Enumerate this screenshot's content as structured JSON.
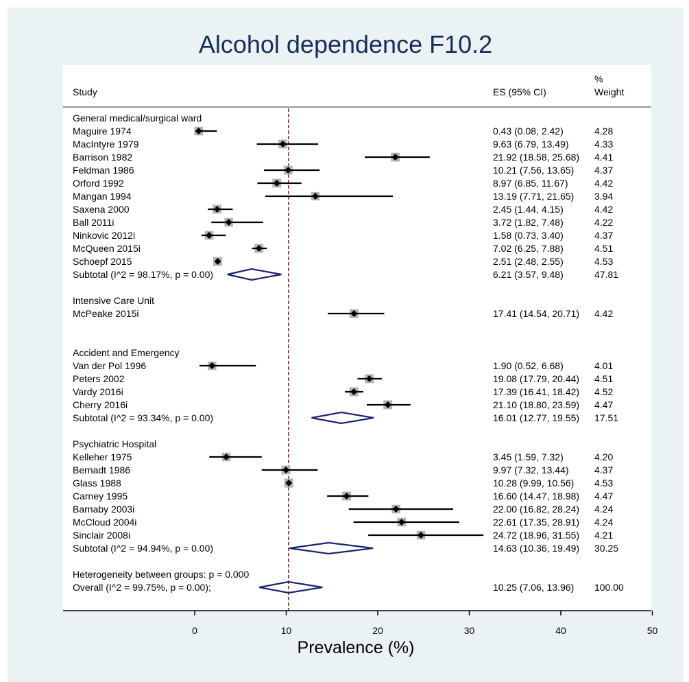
{
  "chart_data": {
    "type": "forest",
    "title": "Alcohol dependence F10.2",
    "xlabel": "Prevalence (%)",
    "xlim": [
      -15,
      50
    ],
    "xticks": [
      0,
      10,
      20,
      30,
      40,
      50
    ],
    "reference_line": 10.25,
    "header": {
      "study": "Study",
      "es": "ES (95% CI)",
      "weight_top": "%",
      "weight_bottom": "Weight"
    },
    "rows": [
      {
        "kind": "group",
        "label": "General medical/surgical ward"
      },
      {
        "kind": "study",
        "label": "Maguire 1974",
        "es": 0.43,
        "lo": 0.08,
        "hi": 2.42,
        "weight": 4.28,
        "es_text": "0.43 (0.08, 2.42)",
        "w_text": "4.28"
      },
      {
        "kind": "study",
        "label": "MacIntyre 1979",
        "es": 9.63,
        "lo": 6.79,
        "hi": 13.49,
        "weight": 4.33,
        "es_text": "9.63 (6.79, 13.49)",
        "w_text": "4.33"
      },
      {
        "kind": "study",
        "label": "Barrison 1982",
        "es": 21.92,
        "lo": 18.58,
        "hi": 25.68,
        "weight": 4.41,
        "es_text": "21.92 (18.58, 25.68)",
        "w_text": "4.41"
      },
      {
        "kind": "study",
        "label": "Feldman 1986",
        "es": 10.21,
        "lo": 7.56,
        "hi": 13.65,
        "weight": 4.37,
        "es_text": "10.21 (7.56, 13.65)",
        "w_text": "4.37"
      },
      {
        "kind": "study",
        "label": "Orford 1992",
        "es": 8.97,
        "lo": 6.85,
        "hi": 11.67,
        "weight": 4.42,
        "es_text": "8.97 (6.85, 11.67)",
        "w_text": "4.42"
      },
      {
        "kind": "study",
        "label": "Mangan 1994",
        "es": 13.19,
        "lo": 7.71,
        "hi": 21.65,
        "weight": 3.94,
        "es_text": "13.19 (7.71, 21.65)",
        "w_text": "3.94"
      },
      {
        "kind": "study",
        "label": "Saxena 2000",
        "es": 2.45,
        "lo": 1.44,
        "hi": 4.15,
        "weight": 4.42,
        "es_text": "2.45 (1.44, 4.15)",
        "w_text": "4.42"
      },
      {
        "kind": "study",
        "label": "Ball 2011i",
        "es": 3.72,
        "lo": 1.82,
        "hi": 7.48,
        "weight": 4.22,
        "es_text": "3.72 (1.82, 7.48)",
        "w_text": "4.22"
      },
      {
        "kind": "study",
        "label": "Ninkovic 2012i",
        "es": 1.58,
        "lo": 0.73,
        "hi": 3.4,
        "weight": 4.37,
        "es_text": "1.58 (0.73, 3.40)",
        "w_text": "4.37"
      },
      {
        "kind": "study",
        "label": "McQueen 2015i",
        "es": 7.02,
        "lo": 6.25,
        "hi": 7.88,
        "weight": 4.51,
        "es_text": "7.02 (6.25, 7.88)",
        "w_text": "4.51"
      },
      {
        "kind": "study",
        "label": "Schoepf 2015",
        "es": 2.51,
        "lo": 2.48,
        "hi": 2.55,
        "weight": 4.53,
        "es_text": "2.51 (2.48, 2.55)",
        "w_text": "4.53"
      },
      {
        "kind": "subtotal",
        "label": "Subtotal  (I^2 = 98.17%, p = 0.00)",
        "es": 6.21,
        "lo": 3.57,
        "hi": 9.48,
        "weight": 47.81,
        "es_text": "6.21 (3.57, 9.48)",
        "w_text": "47.81"
      },
      {
        "kind": "blank"
      },
      {
        "kind": "group",
        "label": "Intensive Care Unit"
      },
      {
        "kind": "study",
        "label": "McPeake 2015i",
        "es": 17.41,
        "lo": 14.54,
        "hi": 20.71,
        "weight": 4.42,
        "es_text": "17.41 (14.54, 20.71)",
        "w_text": "4.42"
      },
      {
        "kind": "blank"
      },
      {
        "kind": "blank"
      },
      {
        "kind": "group",
        "label": "Accident and Emergency"
      },
      {
        "kind": "study",
        "label": "Van der Pol 1996",
        "es": 1.9,
        "lo": 0.52,
        "hi": 6.68,
        "weight": 4.01,
        "es_text": "1.90 (0.52, 6.68)",
        "w_text": "4.01"
      },
      {
        "kind": "study",
        "label": "Peters 2002",
        "es": 19.08,
        "lo": 17.79,
        "hi": 20.44,
        "weight": 4.51,
        "es_text": "19.08 (17.79, 20.44)",
        "w_text": "4.51"
      },
      {
        "kind": "study",
        "label": "Vardy 2016i",
        "es": 17.39,
        "lo": 16.41,
        "hi": 18.42,
        "weight": 4.52,
        "es_text": "17.39 (16.41, 18.42)",
        "w_text": "4.52"
      },
      {
        "kind": "study",
        "label": "Cherry 2016i",
        "es": 21.1,
        "lo": 18.8,
        "hi": 23.59,
        "weight": 4.47,
        "es_text": "21.10 (18.80, 23.59)",
        "w_text": "4.47"
      },
      {
        "kind": "subtotal",
        "label": "Subtotal  (I^2 = 93.34%, p = 0.00)",
        "es": 16.01,
        "lo": 12.77,
        "hi": 19.55,
        "weight": 17.51,
        "es_text": "16.01 (12.77, 19.55)",
        "w_text": "17.51"
      },
      {
        "kind": "blank"
      },
      {
        "kind": "group",
        "label": "Psychiatric Hospital"
      },
      {
        "kind": "study",
        "label": "Kelleher 1975",
        "es": 3.45,
        "lo": 1.59,
        "hi": 7.32,
        "weight": 4.2,
        "es_text": "3.45 (1.59, 7.32)",
        "w_text": "4.20"
      },
      {
        "kind": "study",
        "label": "Bernadt 1986",
        "es": 9.97,
        "lo": 7.32,
        "hi": 13.44,
        "weight": 4.37,
        "es_text": "9.97 (7.32, 13.44)",
        "w_text": "4.37"
      },
      {
        "kind": "study",
        "label": "Glass 1988",
        "es": 10.28,
        "lo": 9.99,
        "hi": 10.56,
        "weight": 4.53,
        "es_text": "10.28 (9.99, 10.56)",
        "w_text": "4.53"
      },
      {
        "kind": "study",
        "label": "Carney 1995",
        "es": 16.6,
        "lo": 14.47,
        "hi": 18.98,
        "weight": 4.47,
        "es_text": "16.60 (14.47, 18.98)",
        "w_text": "4.47"
      },
      {
        "kind": "study",
        "label": "Barnaby 2003i",
        "es": 22.0,
        "lo": 16.82,
        "hi": 28.24,
        "weight": 4.24,
        "es_text": "22.00 (16.82, 28.24)",
        "w_text": "4.24"
      },
      {
        "kind": "study",
        "label": "McCloud 2004i",
        "es": 22.61,
        "lo": 17.35,
        "hi": 28.91,
        "weight": 4.24,
        "es_text": "22.61 (17.35, 28.91)",
        "w_text": "4.24"
      },
      {
        "kind": "study",
        "label": "Sinclair 2008i",
        "es": 24.72,
        "lo": 18.96,
        "hi": 31.55,
        "weight": 4.21,
        "es_text": "24.72 (18.96, 31.55)",
        "w_text": "4.21"
      },
      {
        "kind": "subtotal",
        "label": "Subtotal  (I^2 = 94.94%, p = 0.00)",
        "es": 14.63,
        "lo": 10.36,
        "hi": 19.49,
        "weight": 30.25,
        "es_text": "14.63 (10.36, 19.49)",
        "w_text": "30.25"
      },
      {
        "kind": "blank"
      },
      {
        "kind": "text",
        "label": "Heterogeneity between groups: p = 0.000"
      },
      {
        "kind": "overall",
        "label": "Overall  (I^2 = 99.75%, p = 0.00);",
        "es": 10.25,
        "lo": 7.06,
        "hi": 13.96,
        "weight": 100.0,
        "es_text": "10.25 (7.06, 13.96)",
        "w_text": "100.00"
      }
    ]
  },
  "colors": {
    "background": "#eaf2f3",
    "plot_area": "#ffffff",
    "title": "#1a2d5a",
    "diamond": "#1a2470",
    "reference_line": "#8b1a2b",
    "weight_box": "#b3b3b3",
    "ink": "#000000"
  }
}
